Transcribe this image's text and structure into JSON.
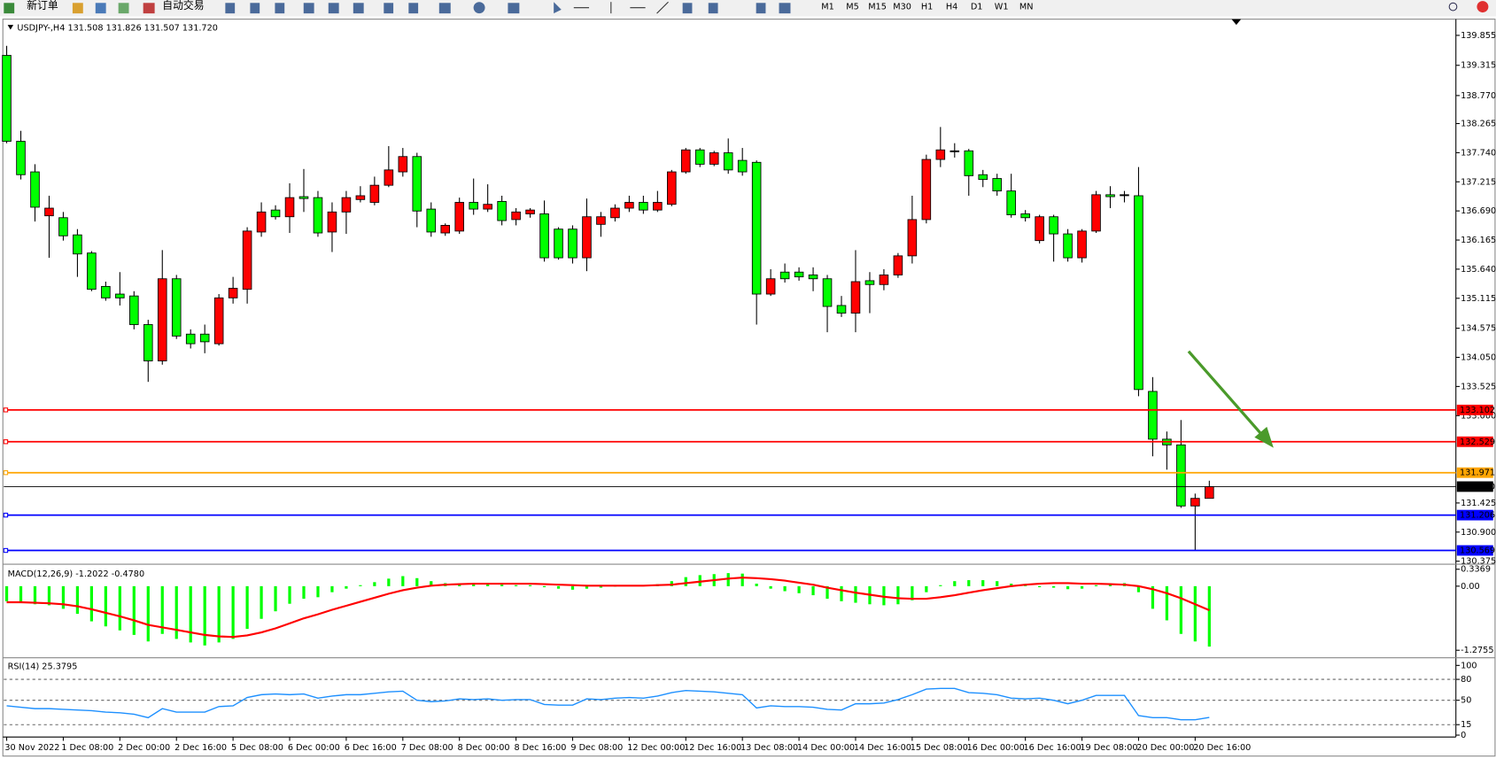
{
  "toolbar": {
    "new_order": "新订单",
    "auto_trading": "自动交易",
    "timeframes": [
      "M1",
      "M5",
      "M15",
      "M30",
      "H1",
      "H4",
      "D1",
      "W1",
      "MN"
    ]
  },
  "chart_data": [
    {
      "type": "candlestick",
      "title": "USDJPY-,H4  131.508 131.826 131.507 131.720",
      "categories": [
        "30 Nov 2022",
        null,
        null,
        null,
        "1 Dec 08:00",
        null,
        null,
        null,
        "2 Dec 00:00",
        null,
        null,
        null,
        "2 Dec 16:00",
        null,
        null,
        null,
        "5 Dec 08:00",
        null,
        null,
        null,
        "6 Dec 00:00",
        null,
        null,
        null,
        "6 Dec 16:00",
        null,
        null,
        null,
        "7 Dec 08:00",
        null,
        null,
        null,
        "8 Dec 00:00",
        null,
        null,
        null,
        "8 Dec 16:00",
        null,
        null,
        null,
        "9 Dec 08:00",
        null,
        null,
        null,
        "12 Dec 00:00",
        null,
        null,
        null,
        "12 Dec 16:00",
        null,
        null,
        null,
        "13 Dec 08:00",
        null,
        null,
        null,
        "14 Dec 00:00",
        null,
        null,
        null,
        "14 Dec 16:00",
        null,
        null,
        null,
        "15 Dec 08:00",
        null,
        null,
        null,
        "16 Dec 00:00",
        null,
        null,
        null,
        "16 Dec 16:00",
        null,
        null,
        null,
        "19 Dec 08:00",
        null,
        null,
        null,
        "20 Dec 00:00",
        null,
        null,
        null,
        "20 Dec 16:00",
        null
      ],
      "ohlc": [
        [
          139.494,
          139.666,
          137.91,
          137.945
        ],
        [
          137.945,
          138.134,
          137.257,
          137.343
        ],
        [
          137.394,
          137.532,
          136.499,
          136.757
        ],
        [
          136.602,
          136.964,
          135.845,
          136.74
        ],
        [
          136.568,
          136.671,
          136.155,
          136.241
        ],
        [
          136.258,
          136.362,
          135.501,
          135.914
        ],
        [
          135.931,
          135.966,
          135.243,
          135.277
        ],
        [
          135.329,
          135.415,
          135.071,
          135.122
        ],
        [
          135.191,
          135.587,
          134.985,
          135.122
        ],
        [
          135.157,
          135.243,
          134.555,
          134.641
        ],
        [
          134.641,
          134.727,
          133.608,
          133.986
        ],
        [
          133.986,
          135.983,
          133.918,
          135.467
        ],
        [
          135.467,
          135.536,
          134.382,
          134.434
        ],
        [
          134.469,
          134.555,
          134.21,
          134.296
        ],
        [
          134.469,
          134.641,
          134.124,
          134.331
        ],
        [
          134.296,
          135.191,
          134.262,
          135.122
        ],
        [
          135.122,
          135.501,
          135.019,
          135.295
        ],
        [
          135.277,
          136.396,
          135.019,
          136.327
        ],
        [
          136.31,
          136.844,
          136.224,
          136.671
        ],
        [
          136.706,
          136.792,
          136.534,
          136.585
        ],
        [
          136.585,
          137.188,
          136.293,
          136.93
        ],
        [
          136.947,
          137.446,
          136.671,
          136.913
        ],
        [
          136.93,
          137.05,
          136.224,
          136.293
        ],
        [
          136.31,
          136.844,
          135.949,
          136.671
        ],
        [
          136.671,
          137.05,
          136.276,
          136.93
        ],
        [
          136.895,
          137.136,
          136.844,
          136.964
        ],
        [
          136.844,
          137.308,
          136.792,
          137.153
        ],
        [
          137.153,
          137.859,
          137.119,
          137.429
        ],
        [
          137.394,
          137.825,
          137.308,
          137.67
        ],
        [
          137.67,
          137.738,
          136.396,
          136.688
        ],
        [
          136.723,
          136.844,
          136.224,
          136.31
        ],
        [
          136.293,
          136.465,
          136.241,
          136.43
        ],
        [
          136.327,
          136.93,
          136.276,
          136.844
        ],
        [
          136.844,
          137.274,
          136.62,
          136.723
        ],
        [
          136.723,
          137.17,
          136.671,
          136.809
        ],
        [
          136.861,
          136.964,
          136.43,
          136.516
        ],
        [
          136.534,
          136.74,
          136.43,
          136.671
        ],
        [
          136.637,
          136.74,
          136.568,
          136.706
        ],
        [
          136.637,
          136.878,
          135.776,
          135.845
        ],
        [
          136.362,
          136.396,
          135.811,
          135.845
        ],
        [
          136.362,
          136.43,
          135.742,
          135.845
        ],
        [
          135.845,
          136.913,
          135.604,
          136.585
        ],
        [
          136.448,
          136.671,
          136.224,
          136.585
        ],
        [
          136.568,
          136.809,
          136.499,
          136.74
        ],
        [
          136.74,
          136.964,
          136.671,
          136.844
        ],
        [
          136.844,
          136.964,
          136.637,
          136.706
        ],
        [
          136.706,
          137.05,
          136.671,
          136.844
        ],
        [
          136.809,
          137.429,
          136.775,
          137.394
        ],
        [
          137.394,
          137.825,
          137.36,
          137.79
        ],
        [
          137.79,
          137.825,
          137.48,
          137.532
        ],
        [
          137.532,
          137.773,
          137.497,
          137.738
        ],
        [
          137.738,
          137.996,
          137.36,
          137.429
        ],
        [
          137.601,
          137.825,
          137.325,
          137.394
        ],
        [
          137.566,
          137.601,
          134.641,
          135.191
        ],
        [
          135.191,
          135.639,
          135.157,
          135.467
        ],
        [
          135.587,
          135.742,
          135.398,
          135.467
        ],
        [
          135.587,
          135.673,
          135.432,
          135.501
        ],
        [
          135.536,
          135.673,
          135.243,
          135.467
        ],
        [
          135.467,
          135.536,
          134.503,
          134.968
        ],
        [
          134.985,
          135.157,
          134.778,
          134.847
        ],
        [
          134.847,
          135.983,
          134.503,
          135.415
        ],
        [
          135.432,
          135.587,
          134.847,
          135.363
        ],
        [
          135.363,
          135.639,
          135.26,
          135.536
        ],
        [
          135.536,
          135.931,
          135.484,
          135.88
        ],
        [
          135.88,
          136.964,
          135.742,
          136.534
        ],
        [
          136.534,
          137.704,
          136.465,
          137.618
        ],
        [
          137.618,
          138.203,
          137.48,
          137.79
        ],
        [
          137.773,
          137.911,
          137.652,
          137.773
        ],
        [
          137.773,
          137.808,
          136.964,
          137.325
        ],
        [
          137.343,
          137.429,
          137.119,
          137.257
        ],
        [
          137.274,
          137.36,
          136.964,
          137.05
        ],
        [
          137.05,
          137.36,
          136.568,
          136.62
        ],
        [
          136.637,
          136.706,
          136.499,
          136.568
        ],
        [
          136.155,
          136.62,
          136.104,
          136.585
        ],
        [
          136.585,
          136.62,
          135.776,
          136.276
        ],
        [
          136.276,
          136.362,
          135.776,
          135.845
        ],
        [
          135.845,
          136.362,
          135.759,
          136.327
        ],
        [
          136.327,
          137.05,
          136.293,
          136.982
        ],
        [
          136.982,
          137.136,
          136.74,
          136.947
        ],
        [
          136.982,
          137.05,
          136.844,
          136.982
        ],
        [
          136.964,
          137.48,
          133.35,
          133.47
        ],
        [
          133.436,
          133.694,
          132.266,
          132.575
        ],
        [
          132.575,
          132.713,
          132.025,
          132.472
        ],
        [
          132.472,
          132.92,
          131.336,
          131.371
        ],
        [
          131.371,
          131.594,
          130.569,
          131.508
        ],
        [
          131.508,
          131.826,
          131.507,
          131.72
        ]
      ],
      "up_color": "#ff0000",
      "down_color": "#00ff00",
      "ylim": [
        130.338,
        140.113
      ],
      "yticks": [
        139.855,
        139.315,
        {
          "value": 138.77,
          "label": "138.770"
        },
        138.265,
        {
          "value": 137.74,
          "label": "137.740"
        },
        137.215,
        {
          "value": 136.69,
          "label": "136.690"
        },
        136.165,
        {
          "value": 135.64,
          "label": "135.640"
        },
        135.115,
        134.575,
        {
          "value": 134.05,
          "label": "134.050"
        },
        133.525,
        {
          "value": 133,
          "label": "133.000"
        },
        131.425,
        {
          "value": 130.9,
          "label": "130.900"
        },
        130.375
      ],
      "levels": [
        {
          "value": 133.102,
          "color": "#ff0000"
        },
        {
          "value": 132.529,
          "color": "#ff0000"
        },
        {
          "value": 131.971,
          "color": "#ffa500"
        },
        {
          "value": 131.72,
          "label": "131.720",
          "color": "#000000"
        },
        {
          "value": 131.206,
          "color": "#0000ff"
        },
        {
          "value": 130.569,
          "color": "#0000ff"
        }
      ]
    },
    {
      "type": "macd",
      "title": "MACD(12,26,9) -1.2022 -0.4780",
      "ylim": [
        -1.406,
        0.399
      ],
      "yticks": [
        0.3369,
        {
          "value": 0,
          "label": "0.00"
        },
        -1.2755
      ],
      "series": [
        {
          "color": "#00ff00",
          "values": [
            -0.3,
            -0.33,
            -0.36,
            -0.38,
            -0.45,
            -0.55,
            -0.7,
            -0.8,
            -0.88,
            -0.97,
            -1.1,
            -0.95,
            -1.05,
            -1.12,
            -1.18,
            -1.12,
            -1.05,
            -0.85,
            -0.65,
            -0.5,
            -0.35,
            -0.25,
            -0.22,
            -0.12,
            -0.05,
            0.02,
            0.08,
            0.15,
            0.2,
            0.16,
            0.1,
            0.06,
            0.05,
            0.04,
            0.04,
            0.03,
            0.02,
            0.02,
            -0.02,
            -0.05,
            -0.07,
            -0.05,
            -0.03,
            -0.01,
            0.01,
            0.02,
            0.04,
            0.1,
            0.18,
            0.22,
            0.24,
            0.26,
            0.25,
            0.05,
            -0.05,
            -0.1,
            -0.14,
            -0.18,
            -0.25,
            -0.3,
            -0.33,
            -0.36,
            -0.38,
            -0.36,
            -0.28,
            -0.12,
            0.02,
            0.1,
            0.12,
            0.12,
            0.1,
            0.05,
            0.02,
            -0.02,
            -0.03,
            -0.06,
            -0.05,
            0.02,
            0.05,
            0.06,
            -0.12,
            -0.45,
            -0.68,
            -0.95,
            -1.1,
            -1.2022
          ]
        },
        {
          "color": "#ff0000",
          "values": [
            -0.32,
            -0.32,
            -0.33,
            -0.34,
            -0.36,
            -0.4,
            -0.46,
            -0.53,
            -0.6,
            -0.68,
            -0.77,
            -0.82,
            -0.87,
            -0.92,
            -0.97,
            -1.0,
            -1.01,
            -0.98,
            -0.92,
            -0.84,
            -0.74,
            -0.64,
            -0.56,
            -0.47,
            -0.39,
            -0.31,
            -0.23,
            -0.15,
            -0.08,
            -0.03,
            0.01,
            0.03,
            0.04,
            0.05,
            0.05,
            0.05,
            0.05,
            0.05,
            0.04,
            0.03,
            0.02,
            0.01,
            0.01,
            0.01,
            0.01,
            0.01,
            0.02,
            0.03,
            0.06,
            0.09,
            0.12,
            0.15,
            0.17,
            0.16,
            0.14,
            0.11,
            0.07,
            0.03,
            -0.03,
            -0.08,
            -0.13,
            -0.17,
            -0.21,
            -0.24,
            -0.25,
            -0.25,
            -0.22,
            -0.18,
            -0.13,
            -0.08,
            -0.04,
            0.0,
            0.03,
            0.05,
            0.06,
            0.06,
            0.05,
            0.05,
            0.04,
            0.03,
            0.0,
            -0.06,
            -0.14,
            -0.24,
            -0.36,
            -0.478
          ]
        }
      ]
    },
    {
      "type": "rsi",
      "title": "RSI(14) 25.3795",
      "ylim": [
        -2.7,
        109.6
      ],
      "yticks": [
        100,
        80,
        50,
        15,
        0
      ],
      "series": [
        {
          "color": "#1e90ff",
          "values": [
            42,
            40,
            38,
            38,
            37,
            36,
            35,
            33,
            32,
            30,
            25,
            38,
            33,
            33,
            33,
            41,
            42,
            54,
            58,
            59,
            58,
            59,
            53,
            56,
            58,
            58,
            60,
            62,
            63,
            50,
            48,
            49,
            52,
            51,
            52,
            50,
            51,
            51,
            44,
            43,
            43,
            52,
            51,
            53,
            54,
            53,
            56,
            61,
            64,
            63,
            62,
            60,
            58,
            39,
            42,
            41,
            41,
            40,
            37,
            36,
            45,
            45,
            46,
            51,
            58,
            66,
            67,
            67,
            61,
            60,
            58,
            53,
            52,
            53,
            50,
            45,
            50,
            57,
            57,
            57,
            28,
            25,
            25,
            22,
            22,
            25.3795
          ]
        }
      ]
    }
  ]
}
